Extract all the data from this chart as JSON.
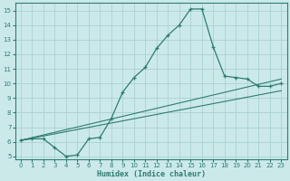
{
  "xlabel": "Humidex (Indice chaleur)",
  "ylabel": "",
  "bg_color": "#cce9ea",
  "grid_color": "#aed4d6",
  "line_color": "#2e7d6e",
  "xlim": [
    -0.5,
    23.5
  ],
  "ylim": [
    4.8,
    15.5
  ],
  "xticks": [
    0,
    1,
    2,
    3,
    4,
    5,
    6,
    7,
    8,
    9,
    10,
    11,
    12,
    13,
    14,
    15,
    16,
    17,
    18,
    19,
    20,
    21,
    22,
    23
  ],
  "yticks": [
    5,
    6,
    7,
    8,
    9,
    10,
    11,
    12,
    13,
    14,
    15
  ],
  "series": [
    {
      "x": [
        0,
        1,
        2,
        3,
        4,
        5,
        6,
        7,
        8,
        9,
        10,
        11,
        12,
        13,
        14,
        15,
        16,
        17,
        18,
        19,
        20,
        21,
        22,
        23
      ],
      "y": [
        6.1,
        6.2,
        6.2,
        5.6,
        5.0,
        5.1,
        6.2,
        6.3,
        7.6,
        9.4,
        10.4,
        11.1,
        12.4,
        13.3,
        14.0,
        15.1,
        15.1,
        12.5,
        10.5,
        10.4,
        10.3,
        9.8,
        9.8,
        10.0
      ],
      "marker": true
    },
    {
      "x": [
        0,
        23
      ],
      "y": [
        6.1,
        10.3
      ],
      "marker": false
    },
    {
      "x": [
        0,
        23
      ],
      "y": [
        6.1,
        9.5
      ],
      "marker": false
    }
  ]
}
